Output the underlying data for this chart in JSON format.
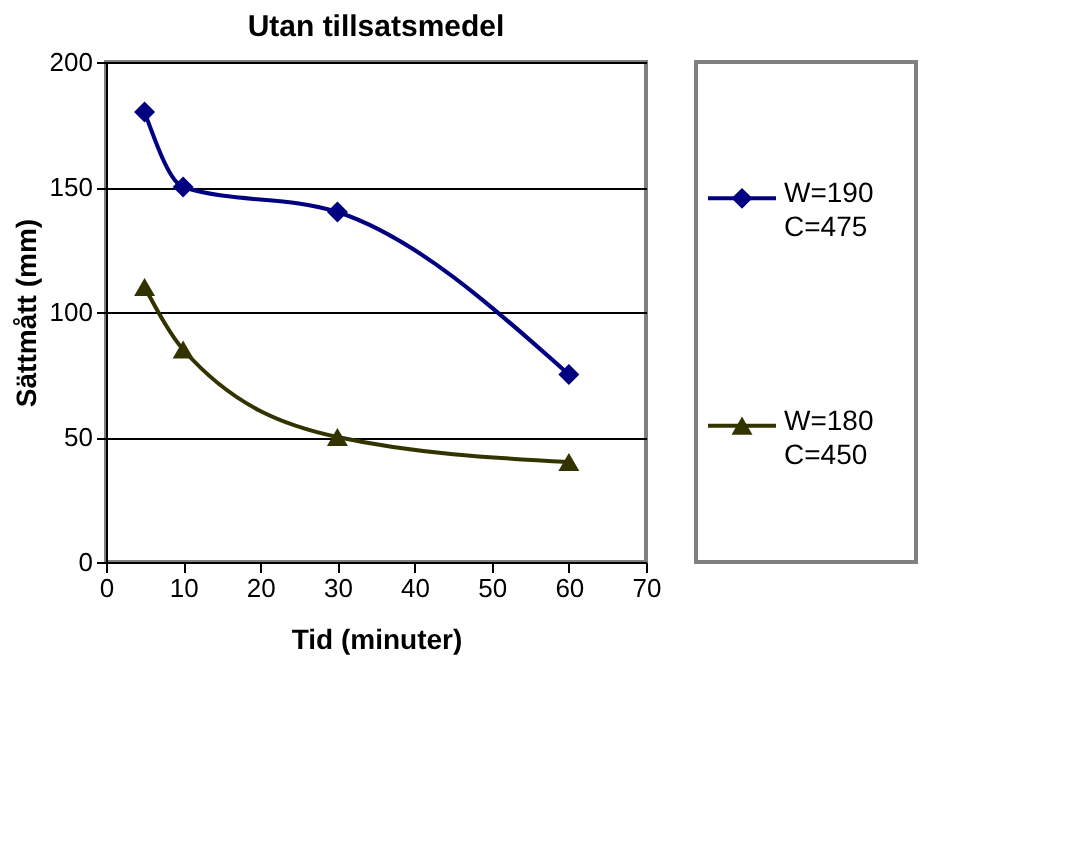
{
  "chart_data": {
    "type": "line",
    "title": "Utan tillsatsmedel",
    "xlabel": "Tid (minuter)",
    "ylabel": "Sättmått (mm)",
    "x": [
      5,
      10,
      30,
      60
    ],
    "series": [
      {
        "name": "W=190\nC=475",
        "color": "#000080",
        "marker": "diamond",
        "values": [
          180,
          150,
          140,
          75
        ]
      },
      {
        "name": "W=180\nC=450",
        "color": "#333300",
        "marker": "triangle",
        "values": [
          110,
          85,
          50,
          40
        ]
      }
    ],
    "xlim": [
      0,
      70
    ],
    "xticks": [
      0,
      10,
      20,
      30,
      40,
      50,
      60,
      70
    ],
    "ylim": [
      0,
      200
    ],
    "yticks": [
      0,
      50,
      100,
      150,
      200
    ],
    "grid": "y",
    "legend": "right"
  }
}
